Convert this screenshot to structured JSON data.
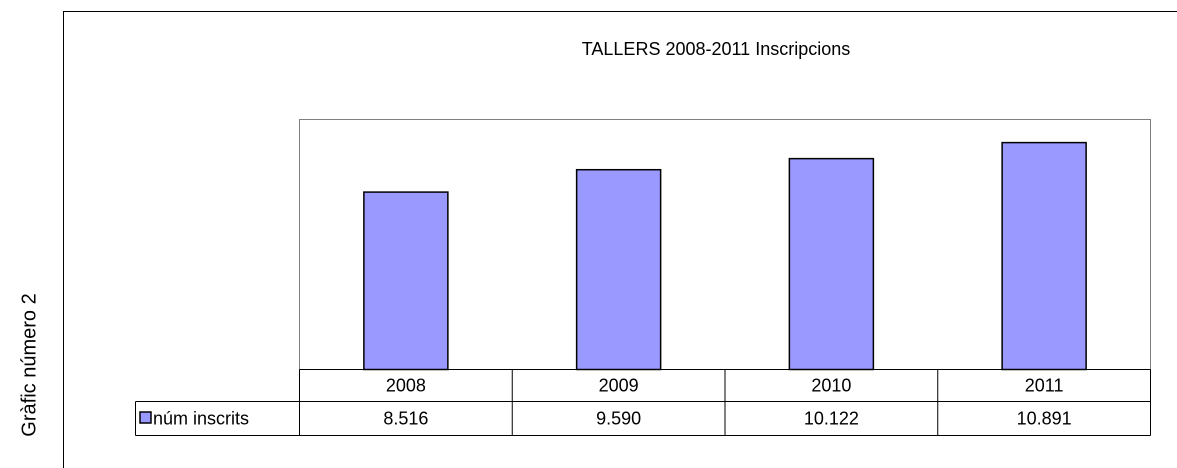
{
  "chart_data": {
    "type": "bar",
    "title": "TALLERS 2008-2011 Inscripcions",
    "caption": "Gràfic número 2",
    "categories": [
      "2008",
      "2009",
      "2010",
      "2011"
    ],
    "series": [
      {
        "name": "núm inscrits",
        "color": "#9999ff",
        "values": [
          8516,
          9590,
          10122,
          10891
        ],
        "value_labels": [
          "8.516",
          "9.590",
          "10.122",
          "10.891"
        ]
      }
    ],
    "ylim": [
      0,
      12000
    ]
  }
}
